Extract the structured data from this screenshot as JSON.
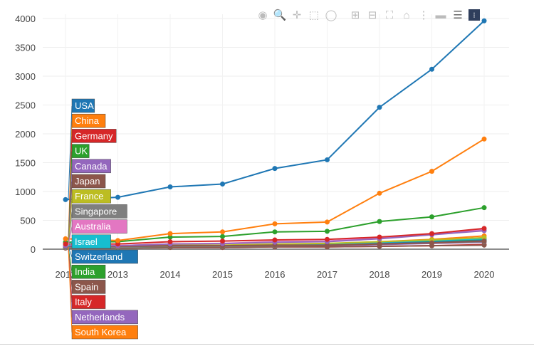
{
  "modebar": {
    "icons": [
      "camera-icon",
      "zoom-icon",
      "pan-icon",
      "box-select-icon",
      "lasso-icon",
      "zoom-in-icon",
      "zoom-out-icon",
      "autoscale-icon",
      "reset-axes-icon",
      "spike-lines-icon",
      "hover-closest-icon",
      "hover-compare-icon",
      "plotly-logo-icon"
    ]
  },
  "chart_data": {
    "type": "line",
    "title": "",
    "xlabel": "",
    "ylabel": "",
    "x": [
      2012,
      2013,
      2014,
      2015,
      2016,
      2017,
      2018,
      2019,
      2020
    ],
    "x_tick_labels": [
      "2012",
      "2013",
      "2014",
      "2015",
      "2016",
      "2017",
      "2018",
      "2019",
      "2020"
    ],
    "y_tick_labels": [
      "0",
      "500",
      "1000",
      "1500",
      "2000",
      "2500",
      "3000",
      "3500",
      "4000"
    ],
    "ylim": [
      0,
      4000
    ],
    "xlim": [
      2012,
      2020
    ],
    "grid": true,
    "legend_placement": "hover-labels-left",
    "series": [
      {
        "name": "USA",
        "color": "#1f77b4",
        "values": [
          860,
          900,
          1080,
          1130,
          1400,
          1550,
          2460,
          3120,
          3960
        ]
      },
      {
        "name": "China",
        "color": "#ff7f0e",
        "values": [
          180,
          150,
          270,
          300,
          440,
          470,
          970,
          1350,
          1910
        ]
      },
      {
        "name": "Germany",
        "color": "#d62728",
        "values": [
          90,
          90,
          130,
          140,
          160,
          170,
          210,
          270,
          360
        ]
      },
      {
        "name": "UK",
        "color": "#2ca02c",
        "values": [
          120,
          130,
          210,
          220,
          300,
          310,
          480,
          560,
          720
        ]
      },
      {
        "name": "Canada",
        "color": "#9467bd",
        "values": [
          60,
          60,
          90,
          95,
          120,
          130,
          180,
          250,
          320
        ]
      },
      {
        "name": "Japan",
        "color": "#8c564b",
        "values": [
          50,
          50,
          60,
          60,
          70,
          70,
          90,
          110,
          140
        ]
      },
      {
        "name": "France",
        "color": "#bcbd22",
        "values": [
          50,
          50,
          70,
          70,
          90,
          100,
          130,
          160,
          200
        ]
      },
      {
        "name": "Singapore",
        "color": "#7f7f7f",
        "values": [
          30,
          30,
          50,
          50,
          60,
          70,
          90,
          110,
          130
        ]
      },
      {
        "name": "Australia",
        "color": "#e377c2",
        "values": [
          60,
          60,
          90,
          100,
          130,
          140,
          200,
          260,
          340
        ]
      },
      {
        "name": "Israel",
        "color": "#17becf",
        "values": [
          40,
          40,
          60,
          60,
          80,
          90,
          120,
          150,
          180
        ]
      },
      {
        "name": "Switzerland",
        "color": "#1f77b4",
        "values": [
          40,
          40,
          60,
          60,
          70,
          80,
          100,
          120,
          150
        ]
      },
      {
        "name": "India",
        "color": "#2ca02c",
        "values": [
          30,
          30,
          50,
          50,
          70,
          80,
          110,
          140,
          170
        ]
      },
      {
        "name": "Spain",
        "color": "#8c564b",
        "values": [
          20,
          20,
          30,
          30,
          40,
          40,
          50,
          60,
          70
        ]
      },
      {
        "name": "Italy",
        "color": "#d62728",
        "values": [
          20,
          20,
          30,
          30,
          40,
          40,
          50,
          60,
          80
        ]
      },
      {
        "name": "Netherlands",
        "color": "#9467bd",
        "values": [
          30,
          30,
          40,
          40,
          60,
          60,
          80,
          100,
          120
        ]
      },
      {
        "name": "South Korea",
        "color": "#ff7f0e",
        "values": [
          40,
          40,
          60,
          60,
          80,
          90,
          130,
          170,
          230
        ]
      }
    ]
  }
}
